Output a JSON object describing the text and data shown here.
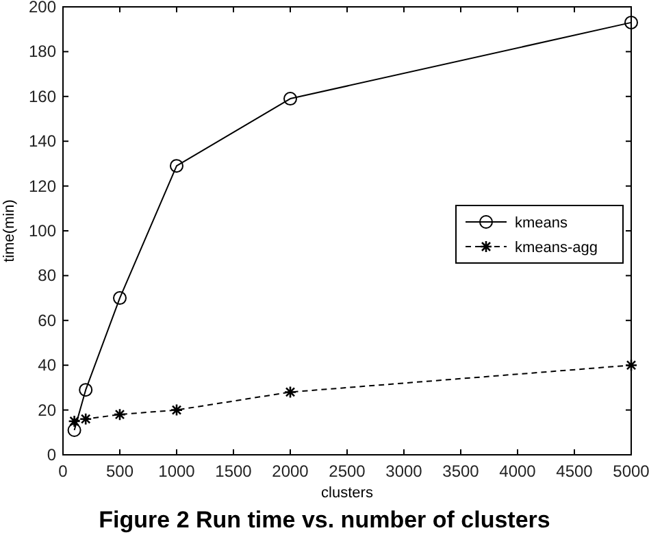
{
  "chart_data": {
    "type": "line",
    "title": "Figure 2 Run time vs. number of clusters",
    "xlabel": "clusters",
    "ylabel": "time(min)",
    "x": [
      100,
      200,
      500,
      1000,
      2000,
      5000
    ],
    "series": [
      {
        "name": "kmeans",
        "color": "#000000",
        "values": [
          11,
          29,
          70,
          129,
          159,
          193
        ],
        "marker": "circle",
        "line_style": "solid"
      },
      {
        "name": "kmeans-agg",
        "color": "#000000",
        "values": [
          15,
          16,
          18,
          20,
          28,
          40
        ],
        "marker": "cross",
        "line_style": "dashed"
      }
    ],
    "xlim": [
      0,
      5000
    ],
    "xticks": [
      0,
      500,
      1000,
      1500,
      2000,
      2500,
      3000,
      3500,
      4000,
      4500,
      5000
    ],
    "ylim": [
      0,
      200
    ],
    "yticks": [
      0,
      20,
      40,
      60,
      80,
      100,
      120,
      140,
      160,
      180,
      200
    ],
    "grid": false,
    "legend": "right"
  }
}
